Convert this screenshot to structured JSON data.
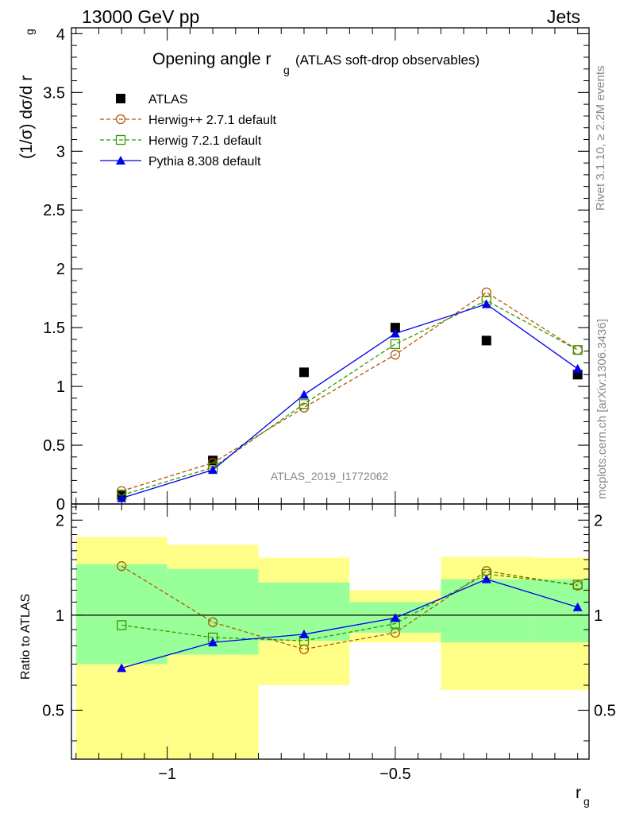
{
  "header": {
    "left": "13000 GeV pp",
    "right": "Jets"
  },
  "side_labels": {
    "rivet": "Rivet 3.1.10, ≥ 2.2M events",
    "mcplots": "mcplots.cern.ch [arXiv:1306.3436]"
  },
  "watermark": "ATLAS_2019_I1772062",
  "chart_data": {
    "type": "line",
    "title": "Opening angle r",
    "title_sub": "g",
    "title_suffix": "(ATLAS soft-drop observables)",
    "xlabel": "r",
    "xlabel_sub": "g",
    "ylabel": "(1/σ) dσ/d r",
    "ylabel_sub": "g",
    "ratio_ylabel": "Ratio to ATLAS",
    "xlim": [
      -1.21,
      -0.075
    ],
    "ylim": [
      0,
      4.05
    ],
    "ratio_ylim": [
      0.35,
      2.25
    ],
    "x": [
      -1.1,
      -0.9,
      -0.7,
      -0.5,
      -0.3,
      -0.1
    ],
    "bin_edges": [
      -1.2,
      -1.0,
      -0.8,
      -0.6,
      -0.4,
      -0.2,
      -0.0
    ],
    "x_ticks": [
      -1,
      -0.5
    ],
    "x_tick_labels": [
      "−1",
      "−0.5"
    ],
    "y_ticks": [
      0,
      0.5,
      1,
      1.5,
      2,
      2.5,
      3,
      3.5,
      4
    ],
    "y_tick_labels": [
      "0",
      "0.5",
      "1",
      "1.5",
      "2",
      "2.5",
      "3",
      "3.5",
      "4"
    ],
    "ratio_ticks": [
      0.5,
      1,
      2
    ],
    "ratio_tick_labels": [
      "0.5",
      "1",
      "2"
    ],
    "series": [
      {
        "name": "ATLAS",
        "color": "#000000",
        "marker": "square-filled",
        "line": "none",
        "values": [
          0.08,
          0.37,
          1.12,
          1.5,
          1.39,
          1.1
        ]
      },
      {
        "name": "Herwig++ 2.7.1 default",
        "color": "#b35900",
        "marker": "circle-open",
        "line": "dashed",
        "values": [
          0.11,
          0.35,
          0.82,
          1.27,
          1.8,
          1.31
        ],
        "ratio": [
          1.43,
          0.95,
          0.78,
          0.88,
          1.38,
          1.24
        ]
      },
      {
        "name": "Herwig 7.2.1 default",
        "color": "#339900",
        "marker": "square-open",
        "line": "dashed",
        "values": [
          0.075,
          0.31,
          0.85,
          1.36,
          1.73,
          1.31
        ],
        "ratio": [
          0.93,
          0.85,
          0.83,
          0.94,
          1.35,
          1.25
        ]
      },
      {
        "name": "Pythia 8.308 default",
        "color": "#0000ee",
        "marker": "triangle-filled",
        "line": "solid",
        "values": [
          0.05,
          0.29,
          0.93,
          1.45,
          1.7,
          1.15
        ],
        "ratio": [
          0.68,
          0.82,
          0.87,
          0.98,
          1.3,
          1.06
        ]
      }
    ],
    "bands": {
      "yellow_color": "#ffff88",
      "green_color": "#99ff99",
      "yellow": [
        [
          0.25,
          1.77
        ],
        [
          0.25,
          1.67
        ],
        [
          0.6,
          1.52
        ],
        [
          0.82,
          1.2
        ],
        [
          0.58,
          1.53
        ],
        [
          0.58,
          1.52
        ]
      ],
      "green": [
        [
          0.7,
          1.45
        ],
        [
          0.75,
          1.4
        ],
        [
          0.83,
          1.27
        ],
        [
          0.88,
          1.1
        ],
        [
          0.82,
          1.3
        ],
        [
          0.82,
          1.3
        ]
      ]
    },
    "grid": false,
    "legend_position": "top-left"
  }
}
